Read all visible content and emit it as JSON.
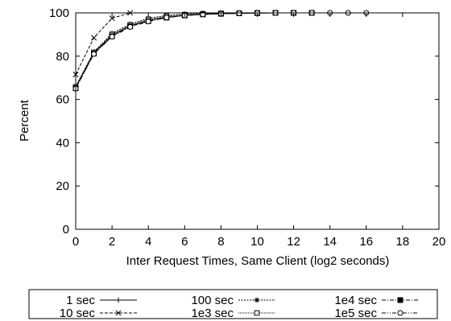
{
  "chart_data": {
    "type": "line",
    "title": "",
    "xlabel": "Inter Request Times, Same Client (log2 seconds)",
    "ylabel": "Percent",
    "xlim": [
      0,
      20
    ],
    "ylim": [
      0,
      100
    ],
    "xticks": [
      0,
      2,
      4,
      6,
      8,
      10,
      12,
      14,
      16,
      18,
      20
    ],
    "yticks": [
      0,
      20,
      40,
      60,
      80,
      100
    ],
    "grid": false,
    "legend_position": "bottom",
    "series": [
      {
        "name": "1 sec",
        "marker": "plus",
        "dash": "solid",
        "x": [
          0,
          1,
          2,
          3,
          4,
          5,
          6,
          7,
          8,
          9,
          10,
          11,
          12,
          13
        ],
        "y": [
          65.5,
          81.5,
          89.5,
          94,
          96.5,
          98,
          98.8,
          99.3,
          99.6,
          99.8,
          99.9,
          100,
          100,
          100
        ]
      },
      {
        "name": "10 sec",
        "marker": "x",
        "dash": "dashed",
        "x": [
          0,
          1,
          2,
          3
        ],
        "y": [
          71.5,
          88.5,
          97.5,
          100
        ]
      },
      {
        "name": "100 sec",
        "marker": "star",
        "dash": "dotted",
        "x": [
          0,
          1,
          2,
          3,
          4,
          5,
          6,
          7,
          8,
          9,
          10
        ],
        "y": [
          66,
          82,
          90.5,
          94.8,
          97.5,
          98.8,
          99.5,
          99.8,
          99.9,
          100,
          100
        ]
      },
      {
        "name": "1e3 sec",
        "marker": "square-open",
        "dash": "dotted-fine",
        "x": [
          0,
          1,
          2,
          3,
          4,
          5,
          6,
          7,
          8,
          9,
          10,
          11,
          12,
          13
        ],
        "y": [
          65.8,
          81.8,
          90,
          94.5,
          97,
          98.5,
          99.2,
          99.6,
          99.8,
          99.9,
          100,
          100,
          100,
          100
        ]
      },
      {
        "name": "1e4 sec",
        "marker": "square-filled",
        "dash": "dash-dot",
        "x": [
          0,
          1,
          2,
          3,
          4,
          5,
          6,
          7,
          8,
          9,
          10,
          11,
          12,
          13
        ],
        "y": [
          65.2,
          81.2,
          89.2,
          93.8,
          96.2,
          97.8,
          98.8,
          99.3,
          99.6,
          99.8,
          99.9,
          100,
          100,
          100
        ]
      },
      {
        "name": "1e5 sec",
        "marker": "circle-open",
        "dash": "dash-dot-dot",
        "x": [
          0,
          1,
          2,
          3,
          4,
          5,
          6,
          7,
          8,
          9,
          10,
          11,
          12,
          13,
          14,
          15,
          16
        ],
        "y": [
          65,
          81,
          89,
          93.5,
          96,
          97.8,
          98.8,
          99.3,
          99.6,
          99.8,
          99.9,
          100,
          100,
          100,
          100,
          100,
          100
        ]
      }
    ]
  }
}
